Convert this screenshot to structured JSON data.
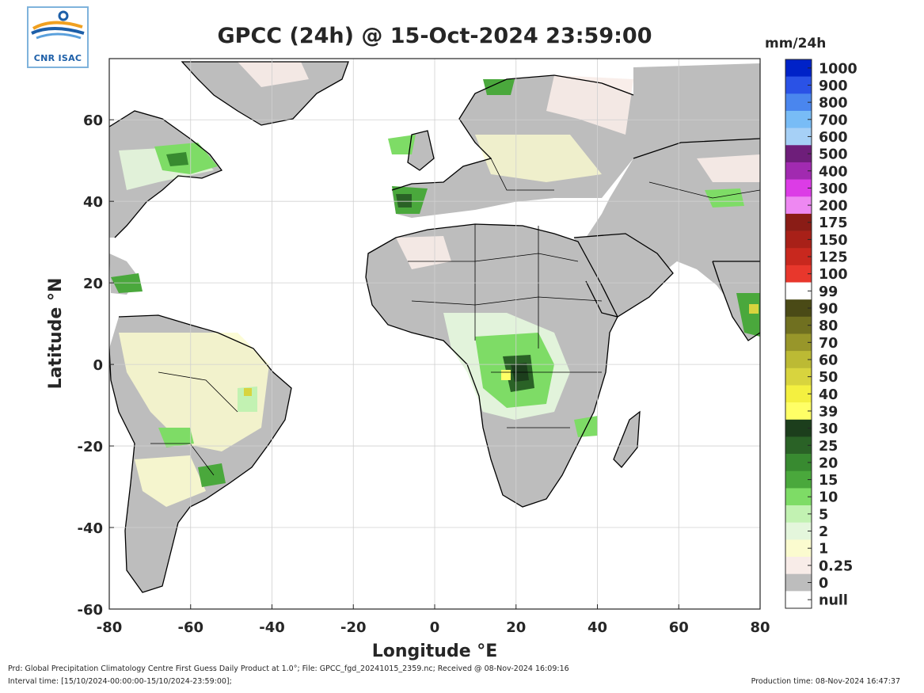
{
  "header": {
    "logo_text": "CNR ISAC",
    "title": "GPCC (24h) @ 15-Oct-2024 23:59:00",
    "unit_label": "mm/24h"
  },
  "axes": {
    "xlabel": "Longitude °E",
    "ylabel": "Latitude °N",
    "x_ticks": [
      "-80",
      "-60",
      "-40",
      "-20",
      "0",
      "20",
      "40",
      "60",
      "80"
    ],
    "y_ticks": [
      "60",
      "40",
      "20",
      "0",
      "-20",
      "-40",
      "-60"
    ],
    "xlim": [
      -80,
      80
    ],
    "ylim": [
      -60,
      75
    ],
    "grid": true
  },
  "colorbar": {
    "classes": [
      {
        "label": "1000",
        "color": "#0022c8"
      },
      {
        "label": "900",
        "color": "#2a52e6"
      },
      {
        "label": "800",
        "color": "#4a86ee"
      },
      {
        "label": "700",
        "color": "#78bcf6"
      },
      {
        "label": "600",
        "color": "#a6d0f6"
      },
      {
        "label": "500",
        "color": "#6e1e7a"
      },
      {
        "label": "400",
        "color": "#a12ab0"
      },
      {
        "label": "300",
        "color": "#dc3ce6"
      },
      {
        "label": "200",
        "color": "#ee88f2"
      },
      {
        "label": "175",
        "color": "#8a1c16"
      },
      {
        "label": "150",
        "color": "#a82018"
      },
      {
        "label": "125",
        "color": "#c8281e"
      },
      {
        "label": "100",
        "color": "#e8372c"
      },
      {
        "label": "99",
        "color": "#ffffff"
      },
      {
        "label": "90",
        "color": "#4a4a16"
      },
      {
        "label": "80",
        "color": "#707020"
      },
      {
        "label": "70",
        "color": "#98962a"
      },
      {
        "label": "60",
        "color": "#bcba34"
      },
      {
        "label": "50",
        "color": "#d8d43e"
      },
      {
        "label": "40",
        "color": "#f4f040"
      },
      {
        "label": "39",
        "color": "#ffff66"
      },
      {
        "label": "30",
        "color": "#1c3e1c"
      },
      {
        "label": "25",
        "color": "#2a6226"
      },
      {
        "label": "20",
        "color": "#388a30"
      },
      {
        "label": "15",
        "color": "#4aa83c"
      },
      {
        "label": "10",
        "color": "#7edc66"
      },
      {
        "label": "5",
        "color": "#c2f2b2"
      },
      {
        "label": "2",
        "color": "#e4f6dc"
      },
      {
        "label": "1",
        "color": "#fbfbcf"
      },
      {
        "label": "0.25",
        "color": "#f8ece8"
      },
      {
        "label": "0",
        "color": "#bdbdbd"
      },
      {
        "label": "null",
        "color": "#ffffff"
      }
    ]
  },
  "footer": {
    "product_line": "Prd: Global Precipitation Climatology Centre First Guess Daily Product at 1.0°; File: GPCC_fgd_20241015_2359.nc; Received @ 08-Nov-2024 16:09:16",
    "interval_line": "Interval time: [15/10/2024-00:00:00-15/10/2024-23:59:00];",
    "production_line": "Production time: 08-Nov-2024 16:47:37"
  }
}
